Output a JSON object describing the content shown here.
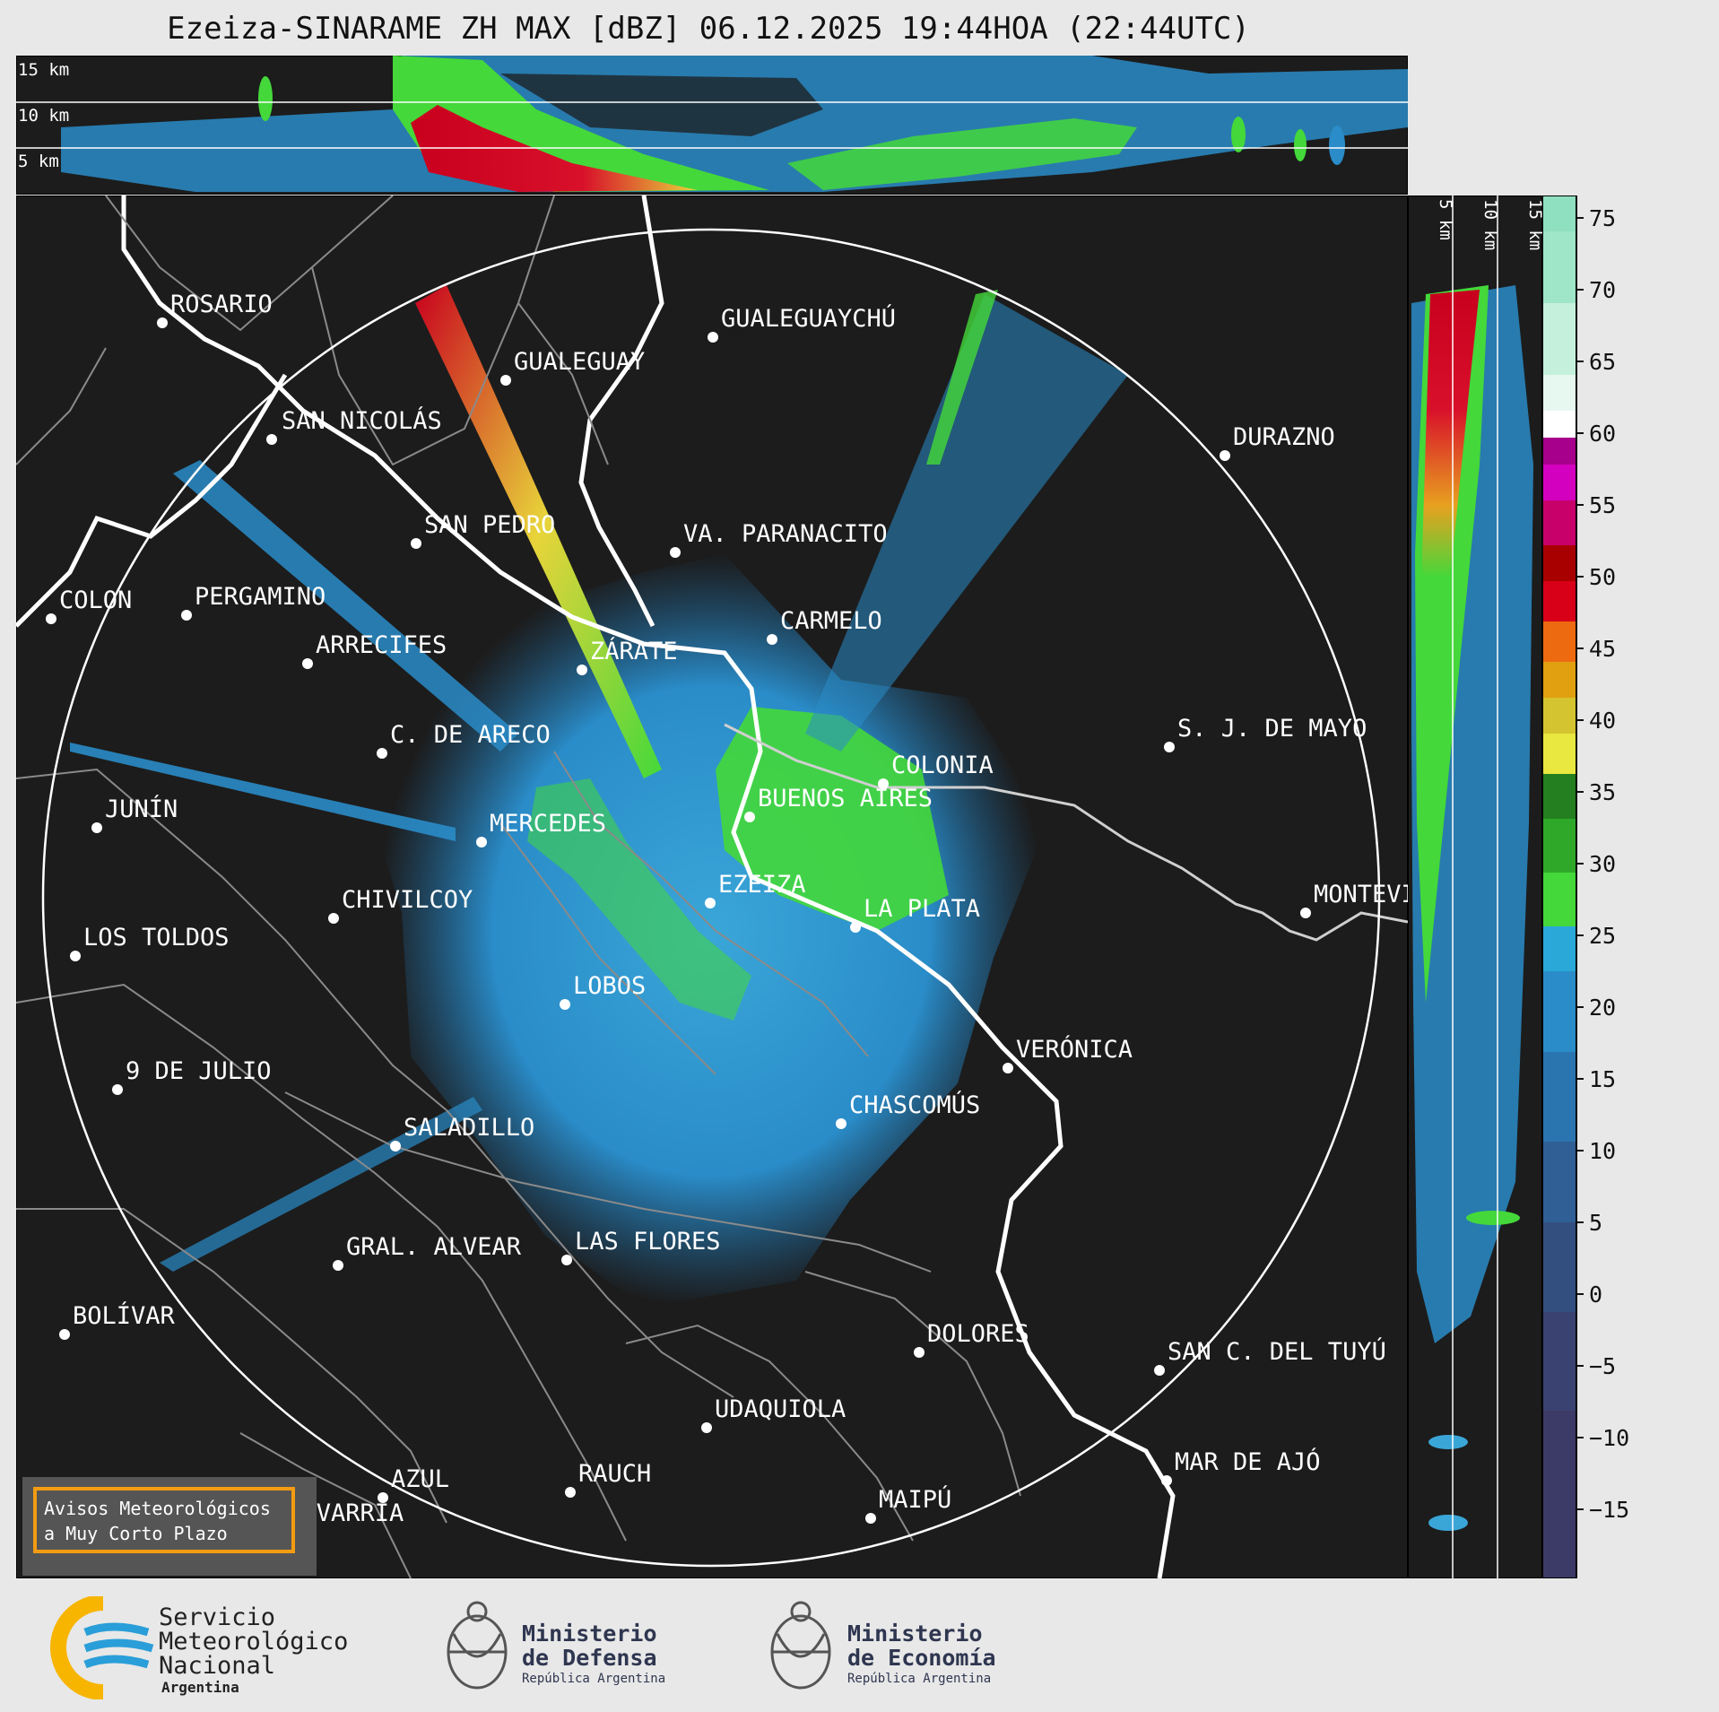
{
  "header": {
    "title": "Ezeiza-SINARAME ZH MAX [dBZ] 06.12.2025 19:44HOA (22:44UTC)"
  },
  "top_profile": {
    "labels": [
      "15 km",
      "10 km",
      "5 km"
    ]
  },
  "side_profile": {
    "labels": [
      "5 km",
      "10 km",
      "15 km"
    ]
  },
  "colorbar": {
    "ticks": [
      "75",
      "70",
      "65",
      "60",
      "55",
      "50",
      "45",
      "40",
      "35",
      "30",
      "25",
      "20",
      "15",
      "10",
      "5",
      "0",
      "−5",
      "−10",
      "−15"
    ]
  },
  "cities": [
    {
      "name": "ROSARIO"
    },
    {
      "name": "GUALEGUAYCHÚ"
    },
    {
      "name": "GUALEGUAY"
    },
    {
      "name": "SAN NICOLÁS"
    },
    {
      "name": "DURAZNO"
    },
    {
      "name": "SAN PEDRO"
    },
    {
      "name": "VA. PARANACITO"
    },
    {
      "name": "COLON"
    },
    {
      "name": "PERGAMINO"
    },
    {
      "name": "CARMELO"
    },
    {
      "name": "ARRECIFES"
    },
    {
      "name": "ZÁRATE"
    },
    {
      "name": "S. J. DE MAYO"
    },
    {
      "name": "C. DE ARECO"
    },
    {
      "name": "COLONIA"
    },
    {
      "name": "JUNÍN"
    },
    {
      "name": "BUENOS AIRES"
    },
    {
      "name": "MERCEDES"
    },
    {
      "name": "EZEIZA"
    },
    {
      "name": "CHIVILCOY"
    },
    {
      "name": "MONTEVIDEO"
    },
    {
      "name": "LA PLATA"
    },
    {
      "name": "LOS TOLDOS"
    },
    {
      "name": "LOBOS"
    },
    {
      "name": "VERÓNICA"
    },
    {
      "name": "9 DE JULIO"
    },
    {
      "name": "CHASCOMÚS"
    },
    {
      "name": "SALADILLO"
    },
    {
      "name": "GRAL. ALVEAR"
    },
    {
      "name": "LAS FLORES"
    },
    {
      "name": "BOLÍVAR"
    },
    {
      "name": "DOLORES"
    },
    {
      "name": "SAN C. DEL TUYÚ"
    },
    {
      "name": "UDAQUIOLA"
    },
    {
      "name": "AZUL"
    },
    {
      "name": "RAUCH"
    },
    {
      "name": "MAR DE AJÓ"
    },
    {
      "name": "OLAVARRÍA"
    },
    {
      "name": "MAIPÚ"
    }
  ],
  "alert_box": {
    "line1": "Avisos Meteorológicos",
    "line2": "a Muy Corto Plazo"
  },
  "footer": {
    "smn": {
      "line1": "Servicio",
      "line2": "Meteorológico",
      "line3": "Nacional",
      "line4": "Argentina"
    },
    "defensa": {
      "line1": "Ministerio",
      "line2": "de Defensa",
      "line3": "República Argentina"
    },
    "economia": {
      "line1": "Ministerio",
      "line2": "de Economía",
      "line3": "República Argentina"
    }
  },
  "colors": {
    "panel": "#1c1c1c",
    "accent": "#f39c12",
    "smn_blue": "#2a9ed8",
    "smn_yellow": "#f7b500"
  }
}
